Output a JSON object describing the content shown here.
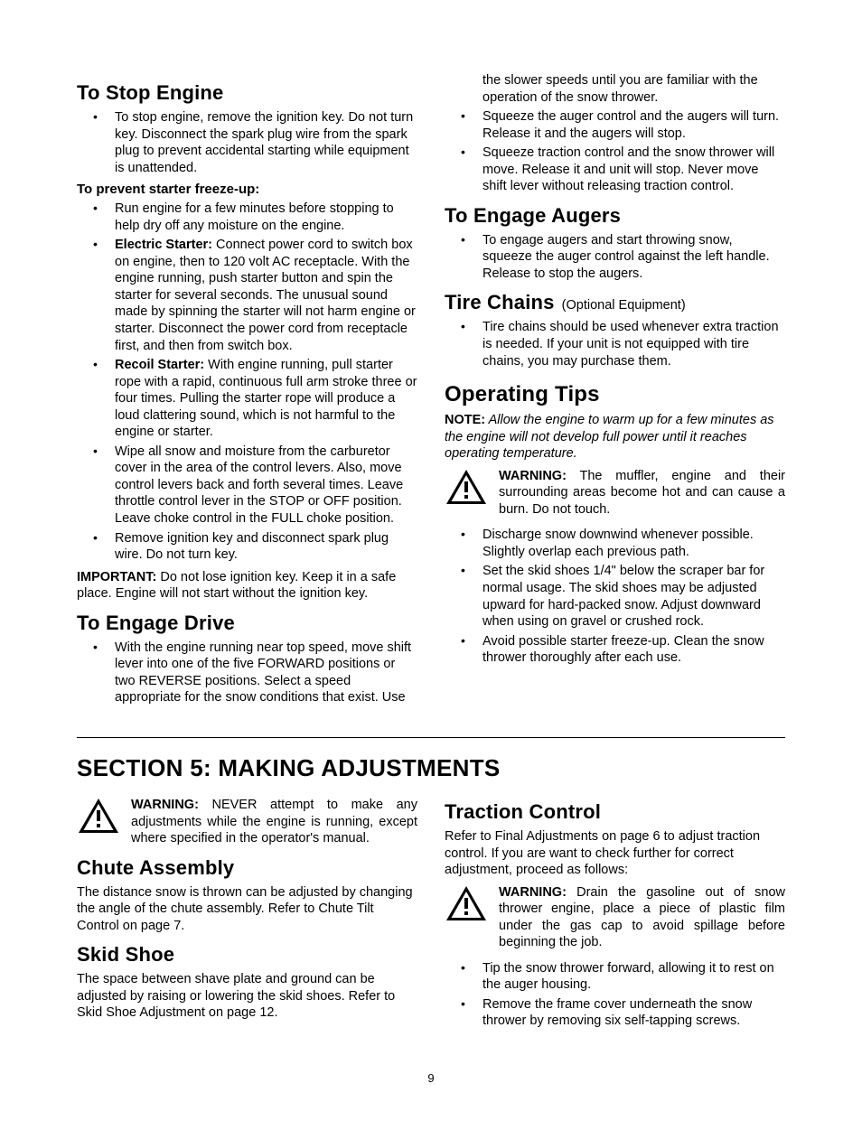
{
  "page_number": "9",
  "left": {
    "stop_engine": {
      "heading": "To Stop Engine",
      "items": [
        "To stop engine, remove the ignition key. Do not turn key. Disconnect the spark plug wire from the spark plug to prevent accidental starting while equipment is unattended."
      ],
      "sub_heading": "To  prevent starter freeze-up:",
      "sub_items": [
        {
          "text": "Run engine for a few minutes before stopping to help dry off any moisture on the engine."
        },
        {
          "lead": "Electric Starter:",
          "text": " Connect power cord to switch box on engine, then to 120 volt AC receptacle. With the engine running, push starter button and spin the starter for several seconds. The unusual sound made by spinning the starter will not harm engine or starter. Disconnect the power cord from receptacle first, and then from switch box."
        },
        {
          "lead": "Recoil Starter:",
          "text": " With engine running, pull starter rope with a rapid, continuous full arm stroke three or four times. Pulling the starter rope will produce a loud clattering sound, which is not harmful to the engine or starter."
        },
        {
          "text": "Wipe all snow and moisture from the carburetor cover in the area of the control levers. Also, move control levers back and forth several times. Leave throttle control lever in the STOP or OFF position. Leave choke control in the FULL choke position."
        },
        {
          "text": "Remove ignition key and disconnect spark plug wire. Do not turn key."
        }
      ],
      "important_label": "IMPORTANT:",
      "important_text": " Do not lose ignition key. Keep it in a safe place. Engine will not start without the ignition key."
    },
    "engage_drive": {
      "heading": "To Engage Drive",
      "items": [
        "With the engine running near top speed, move shift lever into one of the five FORWARD positions or two REVERSE positions. Select a speed appropriate for the snow conditions that exist. Use"
      ]
    }
  },
  "right": {
    "drive_cont": [
      "the slower speeds until you are familiar with the operation of the snow thrower.",
      "Squeeze the auger control and the augers will turn. Release it and the augers will stop.",
      "Squeeze traction control and the snow thrower will move. Release it and unit will stop. Never move shift lever without releasing traction control."
    ],
    "engage_augers": {
      "heading": "To Engage Augers",
      "items": [
        "To engage augers and start throwing snow, squeeze the auger control against the left handle. Release to stop the augers."
      ]
    },
    "tire_chains": {
      "heading": "Tire Chains",
      "note": " (Optional Equipment)",
      "items": [
        "Tire chains should be used whenever extra traction is needed. If your unit is not equipped with tire chains, you may purchase them."
      ]
    },
    "operating_tips": {
      "heading": "Operating Tips",
      "note_label": "NOTE:",
      "note_text": " Allow the engine to warm up for a few minutes as the engine will not develop full power until it reaches operating temperature.",
      "warning_label": "WARNING:",
      "warning_text": " The muffler, engine and their surrounding areas become hot and can cause a burn. Do not touch.",
      "items": [
        "Discharge snow downwind whenever possible. Slightly overlap each previous path.",
        "Set the skid shoes 1/4\" below the scraper bar for normal usage. The skid shoes may be adjusted upward for hard-packed snow. Adjust downward when using on gravel or crushed rock.",
        "Avoid possible starter freeze-up. Clean the snow thrower thoroughly after each use."
      ]
    }
  },
  "section5": {
    "title": "SECTION 5:  MAKING ADJUSTMENTS",
    "warning_label": "WARNING:",
    "warning_text": " NEVER attempt to make any adjustments while the engine is running, except where specified in the operator's manual.",
    "chute": {
      "heading": "Chute Assembly",
      "text": "The distance snow is thrown can be adjusted by changing the angle of the chute assembly. Refer to Chute Tilt Control on page 7."
    },
    "skid": {
      "heading": "Skid Shoe",
      "text": "The space between shave plate and ground can be adjusted by raising or lowering the skid shoes. Refer to Skid Shoe Adjustment on page 12."
    },
    "traction": {
      "heading": "Traction Control",
      "text": "Refer to Final Adjustments on page 6 to adjust traction control. If you are want to check further for correct adjustment, proceed as follows:",
      "warning_label": "WARNING:",
      "warning_text": " Drain the gasoline out of snow thrower engine, place a piece of plastic film under the gas cap to avoid spillage before beginning the job.",
      "items": [
        "Tip the snow thrower forward, allowing it to rest on the auger housing.",
        "Remove the frame cover underneath the snow thrower by removing six self-tapping screws."
      ]
    }
  }
}
